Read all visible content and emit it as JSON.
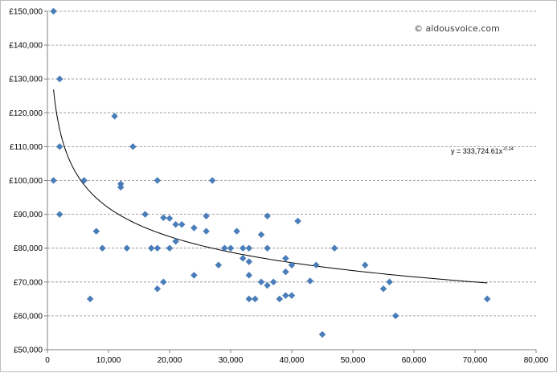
{
  "watermark": "© aldousvoice.com",
  "trendline": {
    "label_base": "y = 333,724.61x",
    "label_exp": "-0.14",
    "coefficient": 333724.61,
    "exponent": -0.14,
    "x_start": 1000,
    "x_end": 72000
  },
  "chart_data": {
    "type": "scatter",
    "title": "",
    "xlabel": "",
    "ylabel": "",
    "xlim": [
      0,
      80000
    ],
    "ylim": [
      50000,
      150000
    ],
    "x_ticks": [
      0,
      10000,
      20000,
      30000,
      40000,
      50000,
      60000,
      70000,
      80000
    ],
    "x_tick_labels": [
      "0",
      "10,000",
      "20,000",
      "30,000",
      "40,000",
      "50,000",
      "60,000",
      "70,000",
      "80,000"
    ],
    "y_ticks": [
      50000,
      60000,
      70000,
      80000,
      90000,
      100000,
      110000,
      120000,
      130000,
      140000,
      150000
    ],
    "y_tick_labels": [
      "£50,000",
      "£60,000",
      "£70,000",
      "£80,000",
      "£90,000",
      "£100,000",
      "£110,000",
      "£120,000",
      "£130,000",
      "£140,000",
      "£150,000"
    ],
    "grid": "horizontal dashed",
    "marker_color": "#4a7ebb",
    "trendline_color": "#000000",
    "points": [
      [
        1000,
        150000
      ],
      [
        2000,
        130000
      ],
      [
        1000,
        100000
      ],
      [
        2000,
        110000
      ],
      [
        2000,
        90000
      ],
      [
        6000,
        100000
      ],
      [
        7000,
        65000
      ],
      [
        8000,
        85000
      ],
      [
        9000,
        80000
      ],
      [
        11000,
        119000
      ],
      [
        12000,
        99000
      ],
      [
        12000,
        98000
      ],
      [
        13000,
        80000
      ],
      [
        14000,
        110000
      ],
      [
        16000,
        90000
      ],
      [
        17000,
        80000
      ],
      [
        18000,
        100000
      ],
      [
        18000,
        80000
      ],
      [
        18000,
        68000
      ],
      [
        19000,
        89000
      ],
      [
        19000,
        70000
      ],
      [
        20000,
        88800
      ],
      [
        20000,
        80000
      ],
      [
        21000,
        87000
      ],
      [
        21000,
        82000
      ],
      [
        22000,
        87000
      ],
      [
        24000,
        86000
      ],
      [
        24000,
        72000
      ],
      [
        26000,
        89500
      ],
      [
        26000,
        85000
      ],
      [
        27000,
        100000
      ],
      [
        28000,
        75000
      ],
      [
        29000,
        80000
      ],
      [
        30000,
        80000
      ],
      [
        31000,
        85000
      ],
      [
        32000,
        80000
      ],
      [
        32000,
        77000
      ],
      [
        33000,
        80000
      ],
      [
        33000,
        76000
      ],
      [
        33000,
        72000
      ],
      [
        33000,
        65000
      ],
      [
        34000,
        65000
      ],
      [
        35000,
        84000
      ],
      [
        35000,
        70000
      ],
      [
        36000,
        89500
      ],
      [
        36000,
        80000
      ],
      [
        36000,
        69000
      ],
      [
        37000,
        70000
      ],
      [
        38000,
        65000
      ],
      [
        39000,
        77000
      ],
      [
        39000,
        73000
      ],
      [
        39000,
        66000
      ],
      [
        40000,
        75000
      ],
      [
        40000,
        66000
      ],
      [
        41000,
        88000
      ],
      [
        43000,
        70300
      ],
      [
        44000,
        75000
      ],
      [
        45000,
        54500
      ],
      [
        47000,
        80000
      ],
      [
        52000,
        75000
      ],
      [
        55000,
        68000
      ],
      [
        56000,
        70000
      ],
      [
        57000,
        60000
      ],
      [
        72000,
        65000
      ]
    ]
  }
}
